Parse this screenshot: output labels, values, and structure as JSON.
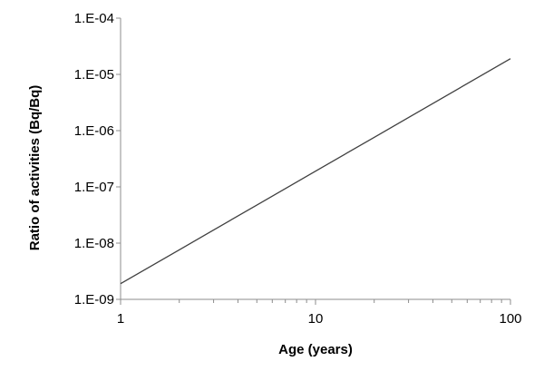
{
  "chart_data": {
    "type": "line",
    "title": "",
    "xlabel": "Age (years)",
    "ylabel": "Ratio of activities (Bq/Bq)",
    "x_scale": "log",
    "y_scale": "log",
    "xlim": [
      1,
      100
    ],
    "ylim": [
      1e-09,
      0.0001
    ],
    "x_ticks": [
      1,
      10,
      100
    ],
    "x_tick_labels": [
      "1",
      "10",
      "100"
    ],
    "y_ticks": [
      1e-09,
      1e-08,
      1e-07,
      1e-06,
      1e-05,
      0.0001
    ],
    "y_tick_labels": [
      "1.E-09",
      "1.E-08",
      "1.E-07",
      "1.E-06",
      "1.E-05",
      "1.E-04"
    ],
    "grid": false,
    "legend": "none",
    "series": [
      {
        "x": [
          1,
          2,
          5,
          10,
          20,
          50,
          100
        ],
        "y": [
          1.9e-09,
          7.6e-09,
          4.75e-08,
          1.9e-07,
          7.6e-07,
          4.75e-06,
          1.9e-05
        ]
      }
    ],
    "colors": {
      "line": "#404040",
      "axis": "#8c8c8c"
    }
  }
}
